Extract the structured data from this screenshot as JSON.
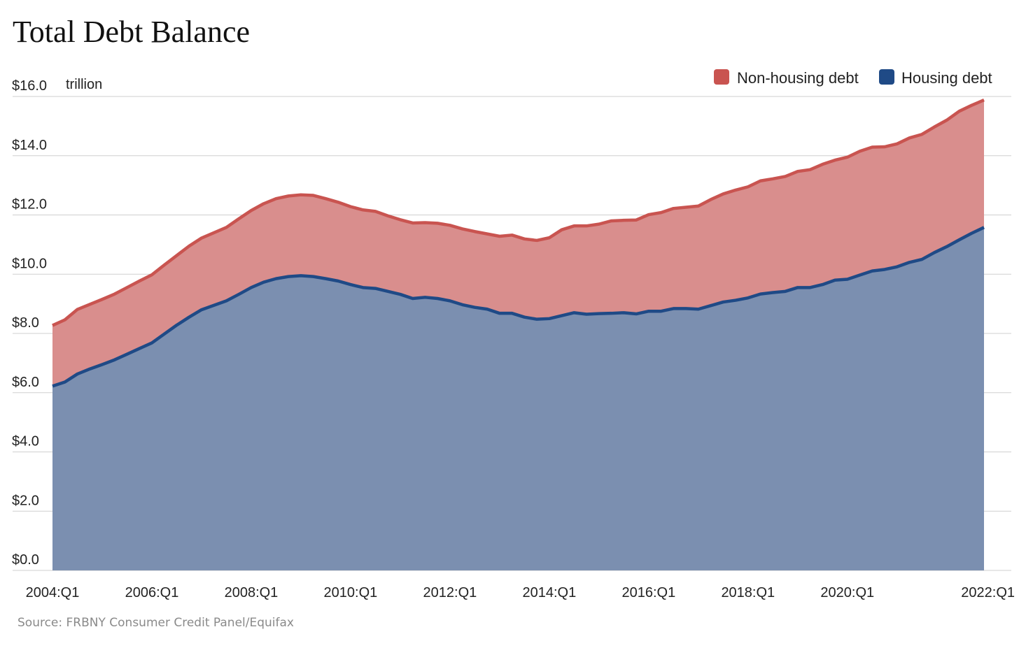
{
  "colors": {
    "non_housing_fill": "#d98e8d",
    "non_housing_line": "#c95450",
    "housing_fill": "#7b8fb0",
    "housing_line": "#1f4a86",
    "grid": "#cfcfcf"
  },
  "chart_data": {
    "type": "area",
    "stacked": true,
    "title": "Total Debt Balance",
    "y_unit_label": "trillion",
    "source": "Source: FRBNY Consumer Credit Panel/Equifax",
    "ylim": [
      0,
      16
    ],
    "grid": true,
    "legend_position": "top-right",
    "y_ticks": [
      "$0.0",
      "$2.0",
      "$4.0",
      "$6.0",
      "$8.0",
      "$10.0",
      "$12.0",
      "$14.0",
      "$16.0"
    ],
    "y_tick_values": [
      0,
      2,
      4,
      6,
      8,
      10,
      12,
      14,
      16
    ],
    "x_ticks": [
      "2004:Q1",
      "2006:Q1",
      "2008:Q1",
      "2010:Q1",
      "2012:Q1",
      "2014:Q1",
      "2016:Q1",
      "2018:Q1",
      "2020:Q1",
      "2022:Q1"
    ],
    "x_tick_indices": [
      0,
      8,
      16,
      24,
      32,
      40,
      48,
      56,
      64,
      72
    ],
    "x_start": "2004:Q1",
    "x_end": "2022:Q1",
    "series": [
      {
        "name": "Housing debt",
        "values": [
          6.22,
          6.36,
          6.63,
          6.8,
          6.95,
          7.11,
          7.3,
          7.49,
          7.68,
          7.98,
          8.28,
          8.55,
          8.8,
          8.95,
          9.1,
          9.32,
          9.55,
          9.73,
          9.85,
          9.92,
          9.95,
          9.92,
          9.85,
          9.77,
          9.65,
          9.55,
          9.52,
          9.42,
          9.32,
          9.18,
          9.22,
          9.18,
          9.1,
          8.97,
          8.88,
          8.82,
          8.68,
          8.68,
          8.55,
          8.48,
          8.5,
          8.6,
          8.7,
          8.65,
          8.67,
          8.68,
          8.7,
          8.66,
          8.75,
          8.75,
          8.84,
          8.84,
          8.82,
          8.94,
          9.06,
          9.12,
          9.2,
          9.33,
          9.38,
          9.42,
          9.55,
          9.55,
          9.65,
          9.8,
          9.83,
          9.97,
          10.11,
          10.16,
          10.25,
          10.4,
          10.5,
          10.73,
          10.93,
          11.16,
          11.38,
          11.58
        ]
      },
      {
        "name": "Non-housing debt",
        "values": [
          2.05,
          2.1,
          2.18,
          2.18,
          2.2,
          2.22,
          2.25,
          2.28,
          2.3,
          2.33,
          2.35,
          2.4,
          2.42,
          2.45,
          2.48,
          2.55,
          2.6,
          2.65,
          2.7,
          2.72,
          2.73,
          2.74,
          2.7,
          2.66,
          2.63,
          2.62,
          2.6,
          2.55,
          2.52,
          2.55,
          2.52,
          2.54,
          2.55,
          2.56,
          2.56,
          2.54,
          2.6,
          2.64,
          2.64,
          2.66,
          2.73,
          2.9,
          2.93,
          2.98,
          3.02,
          3.12,
          3.12,
          3.17,
          3.26,
          3.33,
          3.38,
          3.42,
          3.48,
          3.58,
          3.65,
          3.72,
          3.75,
          3.82,
          3.84,
          3.88,
          3.92,
          3.98,
          4.06,
          4.05,
          4.12,
          4.18,
          4.18,
          4.14,
          4.15,
          4.2,
          4.22,
          4.24,
          4.27,
          4.34,
          4.32,
          4.3
        ]
      }
    ]
  }
}
